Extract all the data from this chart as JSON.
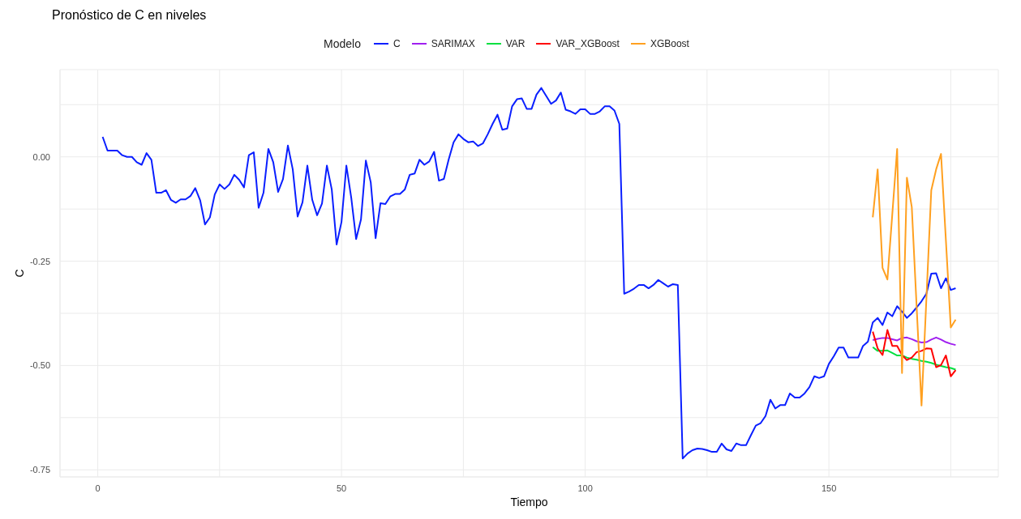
{
  "chart_data": {
    "type": "line",
    "title": "Pronóstico de C en niveles",
    "xlabel": "Tiempo",
    "ylabel": "C",
    "legend_title": "Modelo",
    "legend": "top",
    "grid": true,
    "marker": "none",
    "xlim": [
      -7.75,
      184.75
    ],
    "ylim": [
      -0.767,
      0.209
    ],
    "xticks": [
      0,
      {
        "value": 25,
        "label": null
      },
      50,
      {
        "value": 75,
        "label": null
      },
      100,
      {
        "value": 125,
        "label": null
      },
      150,
      {
        "value": 175,
        "label": null
      }
    ],
    "yticks": [
      {
        "value": -0.75,
        "label": "-0.75"
      },
      {
        "value": -0.625,
        "label": null
      },
      {
        "value": -0.5,
        "label": "-0.50"
      },
      {
        "value": -0.375,
        "label": null
      },
      {
        "value": -0.25,
        "label": "-0.25"
      },
      {
        "value": -0.125,
        "label": null
      },
      {
        "value": 0,
        "label": "0.00"
      },
      {
        "value": 0.125,
        "label": null
      }
    ],
    "series": [
      {
        "name": "C",
        "color": "#0a1fff",
        "x": [
          1,
          2,
          4,
          5,
          6,
          7,
          8,
          9,
          10,
          11,
          12,
          13,
          14,
          15,
          16,
          17,
          18,
          19,
          20,
          21,
          22,
          23,
          24,
          25,
          26,
          27,
          28,
          29,
          30,
          31,
          32,
          33,
          34,
          35,
          36,
          37,
          38,
          39,
          40,
          41,
          42,
          43,
          44,
          45,
          46,
          47,
          48,
          49,
          50,
          51,
          52,
          53,
          54,
          55,
          56,
          57,
          58,
          59,
          60,
          61,
          62,
          63,
          64,
          65,
          66,
          67,
          68,
          69,
          70,
          71,
          72,
          73,
          74,
          75,
          76,
          77,
          78,
          79,
          80,
          81,
          82,
          83,
          84,
          85,
          86,
          87,
          88,
          89,
          90,
          91,
          92,
          93,
          94,
          95,
          96,
          97,
          98,
          99,
          100,
          101,
          102,
          103,
          104,
          105,
          106,
          107,
          108,
          109,
          110,
          111,
          112,
          113,
          114,
          115,
          116,
          117,
          118,
          119,
          120,
          121,
          122,
          123,
          124,
          125,
          126,
          127,
          128,
          129,
          130,
          131,
          132,
          133,
          134,
          135,
          136,
          137,
          138,
          139,
          140,
          141,
          142,
          143,
          144,
          145,
          146,
          147,
          148,
          149,
          150,
          151,
          152,
          153,
          154,
          155,
          156,
          157,
          158,
          159,
          160,
          161,
          162,
          163,
          164,
          165,
          166,
          167,
          168,
          169,
          170,
          171,
          172,
          173,
          174,
          175,
          176
        ],
        "values": [
          0.048,
          0.015,
          0.015,
          0.004,
          0.0,
          0.0,
          -0.013,
          -0.019,
          0.009,
          -0.007,
          -0.086,
          -0.086,
          -0.08,
          -0.103,
          -0.11,
          -0.102,
          -0.102,
          -0.094,
          -0.075,
          -0.104,
          -0.162,
          -0.145,
          -0.09,
          -0.066,
          -0.077,
          -0.066,
          -0.043,
          -0.055,
          -0.073,
          0.004,
          0.011,
          -0.122,
          -0.086,
          0.019,
          -0.013,
          -0.084,
          -0.053,
          0.027,
          -0.03,
          -0.143,
          -0.109,
          -0.021,
          -0.103,
          -0.14,
          -0.112,
          -0.021,
          -0.078,
          -0.21,
          -0.156,
          -0.021,
          -0.098,
          -0.197,
          -0.15,
          -0.009,
          -0.061,
          -0.195,
          -0.111,
          -0.113,
          -0.095,
          -0.089,
          -0.089,
          -0.078,
          -0.043,
          -0.04,
          -0.007,
          -0.019,
          -0.011,
          0.012,
          -0.057,
          -0.053,
          -0.006,
          0.035,
          0.054,
          0.043,
          0.035,
          0.037,
          0.026,
          0.032,
          0.054,
          0.079,
          0.101,
          0.065,
          0.068,
          0.121,
          0.138,
          0.14,
          0.115,
          0.115,
          0.149,
          0.165,
          0.146,
          0.127,
          0.135,
          0.154,
          0.113,
          0.109,
          0.103,
          0.114,
          0.114,
          0.103,
          0.103,
          0.109,
          0.121,
          0.121,
          0.111,
          0.079,
          -0.328,
          -0.323,
          -0.316,
          -0.307,
          -0.307,
          -0.315,
          -0.307,
          -0.295,
          -0.303,
          -0.311,
          -0.305,
          -0.307,
          -0.723,
          -0.711,
          -0.703,
          -0.699,
          -0.7,
          -0.703,
          -0.707,
          -0.707,
          -0.687,
          -0.701,
          -0.705,
          -0.687,
          -0.691,
          -0.691,
          -0.667,
          -0.644,
          -0.638,
          -0.621,
          -0.582,
          -0.603,
          -0.595,
          -0.595,
          -0.567,
          -0.577,
          -0.577,
          -0.567,
          -0.552,
          -0.526,
          -0.53,
          -0.526,
          -0.496,
          -0.478,
          -0.457,
          -0.457,
          -0.481,
          -0.481,
          -0.481,
          -0.453,
          -0.443,
          -0.397,
          -0.386,
          -0.403,
          -0.373,
          -0.382,
          -0.358,
          -0.371,
          -0.386,
          -0.375,
          -0.361,
          -0.346,
          -0.328,
          -0.28,
          -0.279,
          -0.315,
          -0.291,
          -0.319,
          -0.315
        ]
      },
      {
        "name": "SARIMAX",
        "color": "#a020f0",
        "x": [
          159,
          160,
          161,
          162,
          163,
          164,
          165,
          166,
          167,
          168,
          169,
          170,
          171,
          172,
          173,
          174,
          175,
          176
        ],
        "values": [
          -0.439,
          -0.436,
          -0.434,
          -0.434,
          -0.437,
          -0.44,
          -0.434,
          -0.433,
          -0.437,
          -0.442,
          -0.445,
          -0.444,
          -0.438,
          -0.433,
          -0.438,
          -0.444,
          -0.448,
          -0.451
        ]
      },
      {
        "name": "VAR",
        "color": "#00e040",
        "x": [
          159,
          160,
          161,
          162,
          163,
          164,
          165,
          166,
          167,
          168,
          169,
          170,
          171,
          172,
          173,
          174,
          175,
          176
        ],
        "values": [
          -0.456,
          -0.465,
          -0.465,
          -0.464,
          -0.47,
          -0.476,
          -0.476,
          -0.481,
          -0.484,
          -0.486,
          -0.489,
          -0.491,
          -0.494,
          -0.498,
          -0.501,
          -0.504,
          -0.506,
          -0.51
        ]
      },
      {
        "name": "VAR_XGBoost",
        "color": "#ff0000",
        "x": [
          159,
          160,
          161,
          162,
          163,
          164,
          165,
          166,
          167,
          168,
          169,
          170,
          171,
          172,
          173,
          174,
          175,
          176
        ],
        "values": [
          -0.419,
          -0.459,
          -0.475,
          -0.415,
          -0.453,
          -0.453,
          -0.475,
          -0.487,
          -0.481,
          -0.468,
          -0.465,
          -0.459,
          -0.46,
          -0.504,
          -0.499,
          -0.476,
          -0.526,
          -0.511
        ]
      },
      {
        "name": "XGBoost",
        "color": "#ffa020",
        "x": [
          159,
          160,
          161,
          162,
          163,
          164,
          165,
          166,
          167,
          168,
          169,
          170,
          171,
          172,
          173,
          174,
          175,
          176
        ],
        "values": [
          -0.145,
          -0.03,
          -0.266,
          -0.294,
          -0.138,
          0.019,
          -0.518,
          -0.05,
          -0.12,
          -0.36,
          -0.596,
          -0.34,
          -0.08,
          -0.03,
          0.007,
          -0.2,
          -0.409,
          -0.39
        ]
      }
    ]
  }
}
